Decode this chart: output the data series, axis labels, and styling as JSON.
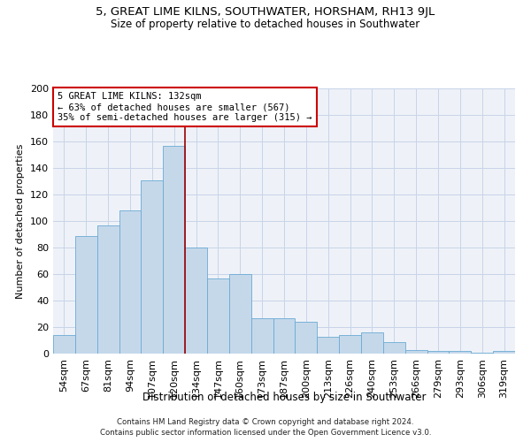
{
  "title": "5, GREAT LIME KILNS, SOUTHWATER, HORSHAM, RH13 9JL",
  "subtitle": "Size of property relative to detached houses in Southwater",
  "xlabel": "Distribution of detached houses by size in Southwater",
  "ylabel": "Number of detached properties",
  "bar_labels": [
    "54sqm",
    "67sqm",
    "81sqm",
    "94sqm",
    "107sqm",
    "120sqm",
    "134sqm",
    "147sqm",
    "160sqm",
    "173sqm",
    "187sqm",
    "200sqm",
    "213sqm",
    "226sqm",
    "240sqm",
    "253sqm",
    "266sqm",
    "279sqm",
    "293sqm",
    "306sqm",
    "319sqm"
  ],
  "bar_values": [
    14,
    89,
    97,
    108,
    131,
    157,
    80,
    57,
    60,
    27,
    27,
    24,
    13,
    14,
    16,
    9,
    3,
    2,
    2,
    1,
    2
  ],
  "bar_color": "#c5d8ea",
  "bar_edge_color": "#6aaad4",
  "vline_x": 5.5,
  "vline_color": "#990000",
  "annotation_text": "5 GREAT LIME KILNS: 132sqm\n← 63% of detached houses are smaller (567)\n35% of semi-detached houses are larger (315) →",
  "annotation_box_color": "#ffffff",
  "annotation_box_edge": "#cc0000",
  "ylim": [
    0,
    200
  ],
  "yticks": [
    0,
    20,
    40,
    60,
    80,
    100,
    120,
    140,
    160,
    180,
    200
  ],
  "grid_color": "#c8d4e8",
  "bg_color": "#eef2f8",
  "footer1": "Contains HM Land Registry data © Crown copyright and database right 2024.",
  "footer2": "Contains public sector information licensed under the Open Government Licence v3.0."
}
